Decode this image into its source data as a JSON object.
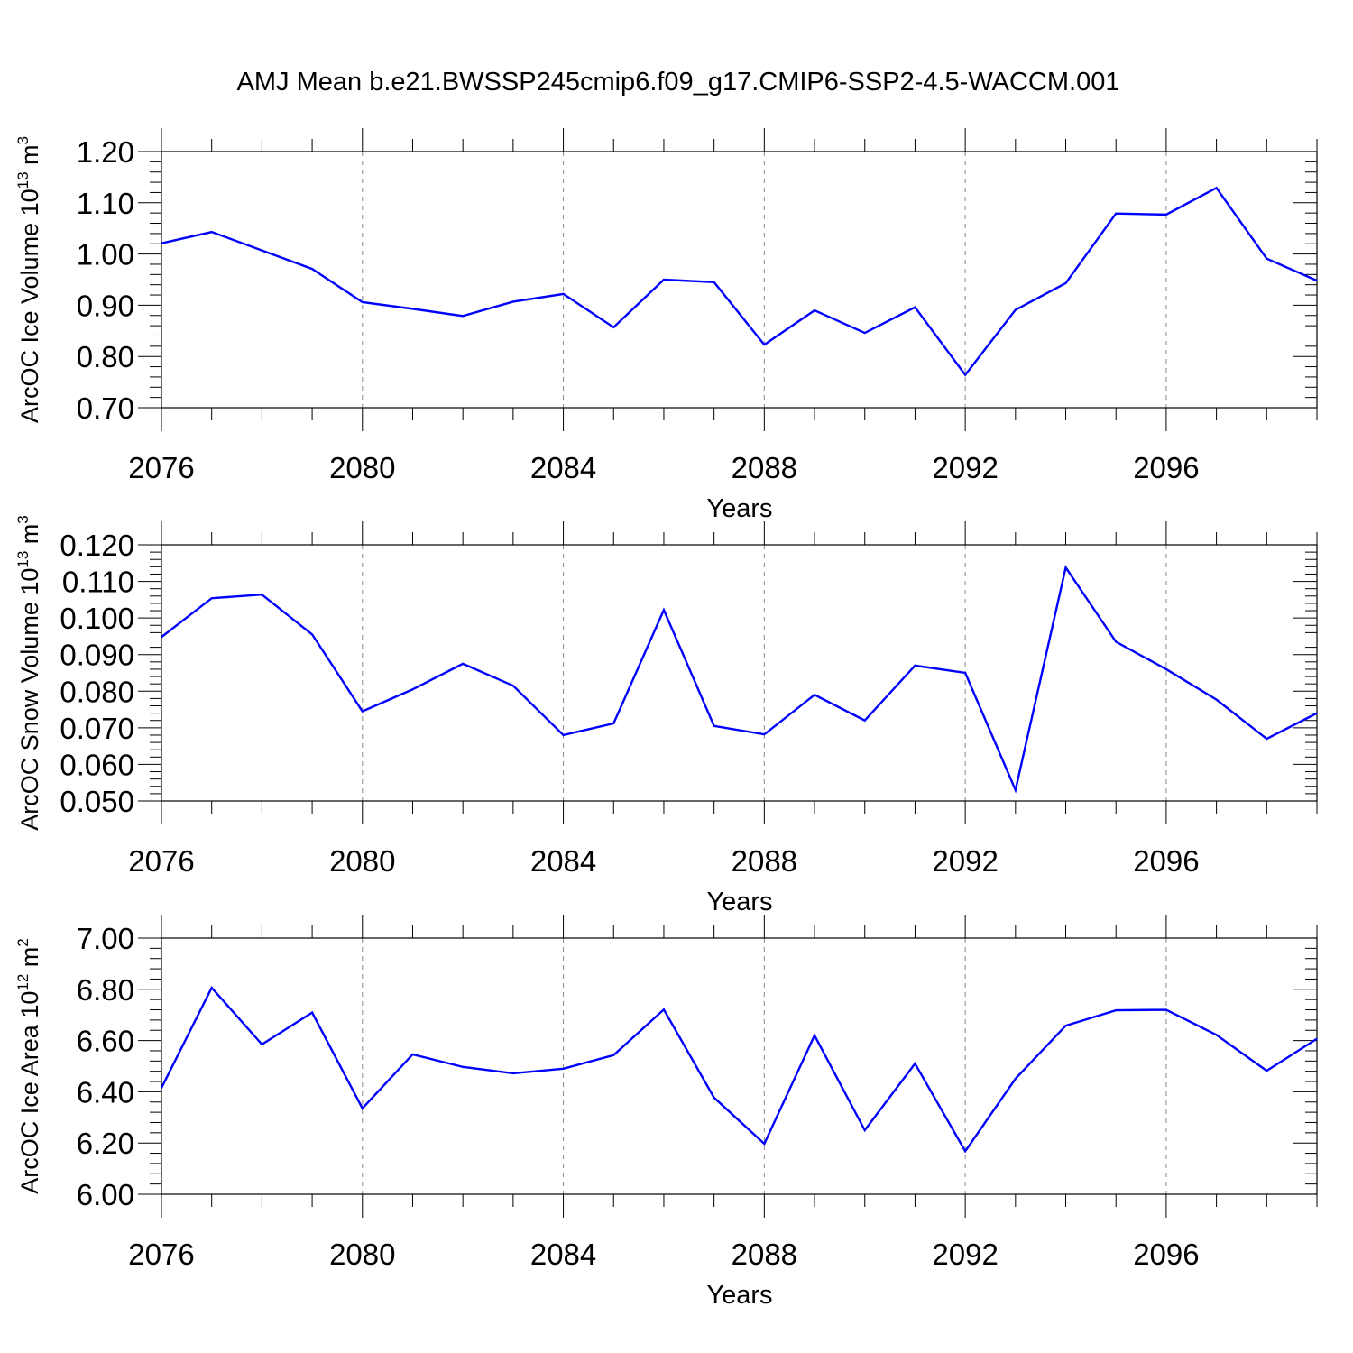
{
  "title": "AMJ Mean b.e21.BWSSP245cmip6.f09_g17.CMIP6-SSP2-4.5-WACCM.001",
  "colors": {
    "series": "#0000ff",
    "axis": "#000000",
    "grid": "#888888"
  },
  "chart_data": [
    {
      "type": "line",
      "ylabel": {
        "text": "ArcOC Ice Volume 10",
        "exponent": "13",
        "unit": " m",
        "unit_exponent": "3"
      },
      "xlabel": "Years",
      "xlim": [
        2076,
        2099
      ],
      "x_major_ticks": [
        2076,
        2080,
        2084,
        2088,
        2092,
        2096
      ],
      "x_tick_labels": [
        "2076",
        "2080",
        "2084",
        "2088",
        "2092",
        "2096"
      ],
      "ylim": [
        0.7,
        1.2
      ],
      "y_ticks": [
        0.7,
        0.8,
        0.9,
        1.0,
        1.1,
        1.2
      ],
      "y_tick_labels": [
        "0.70",
        "0.80",
        "0.90",
        "1.00",
        "1.10",
        "1.20"
      ],
      "grid": "vertical dashed",
      "x": [
        2076,
        2077,
        2078,
        2079,
        2080,
        2081,
        2082,
        2083,
        2084,
        2085,
        2086,
        2087,
        2088,
        2089,
        2090,
        2091,
        2092,
        2093,
        2094,
        2095,
        2096,
        2097,
        2098,
        2099
      ],
      "values": [
        1.021,
        1.043,
        1.007,
        0.971,
        0.906,
        0.893,
        0.879,
        0.907,
        0.922,
        0.857,
        0.95,
        0.945,
        0.823,
        0.89,
        0.846,
        0.896,
        0.764,
        0.891,
        0.943,
        1.079,
        1.077,
        1.129,
        0.991,
        0.948
      ]
    },
    {
      "type": "line",
      "ylabel": {
        "text": "ArcOC Snow Volume 10",
        "exponent": "13",
        "unit": " m",
        "unit_exponent": "3"
      },
      "xlabel": "Years",
      "xlim": [
        2076,
        2099
      ],
      "x_major_ticks": [
        2076,
        2080,
        2084,
        2088,
        2092,
        2096
      ],
      "x_tick_labels": [
        "2076",
        "2080",
        "2084",
        "2088",
        "2092",
        "2096"
      ],
      "ylim": [
        0.05,
        0.12
      ],
      "y_ticks": [
        0.05,
        0.06,
        0.07,
        0.08,
        0.09,
        0.1,
        0.11,
        0.12
      ],
      "y_tick_labels": [
        "0.050",
        "0.060",
        "0.070",
        "0.080",
        "0.090",
        "0.100",
        "0.110",
        "0.120"
      ],
      "grid": "vertical dashed",
      "x": [
        2076,
        2077,
        2078,
        2079,
        2080,
        2081,
        2082,
        2083,
        2084,
        2085,
        2086,
        2087,
        2088,
        2089,
        2090,
        2091,
        2092,
        2093,
        2094,
        2095,
        2096,
        2097,
        2098,
        2099
      ],
      "values": [
        0.0948,
        0.1054,
        0.1064,
        0.0955,
        0.0745,
        0.0805,
        0.0875,
        0.0815,
        0.068,
        0.0712,
        0.1022,
        0.0705,
        0.0682,
        0.079,
        0.072,
        0.087,
        0.085,
        0.053,
        0.1138,
        0.0935,
        0.086,
        0.0777,
        0.067,
        0.074
      ]
    },
    {
      "type": "line",
      "ylabel": {
        "text": "ArcOC Ice Area 10",
        "exponent": "12",
        "unit": " m",
        "unit_exponent": "2"
      },
      "xlabel": "Years",
      "xlim": [
        2076,
        2099
      ],
      "x_major_ticks": [
        2076,
        2080,
        2084,
        2088,
        2092,
        2096
      ],
      "x_tick_labels": [
        "2076",
        "2080",
        "2084",
        "2088",
        "2092",
        "2096"
      ],
      "ylim": [
        6.0,
        7.0
      ],
      "y_ticks": [
        6.0,
        6.2,
        6.4,
        6.6,
        6.8,
        7.0
      ],
      "y_tick_labels": [
        "6.00",
        "6.20",
        "6.40",
        "6.60",
        "6.80",
        "7.00"
      ],
      "grid": "vertical dashed",
      "x": [
        2076,
        2077,
        2078,
        2079,
        2080,
        2081,
        2082,
        2083,
        2084,
        2085,
        2086,
        2087,
        2088,
        2089,
        2090,
        2091,
        2092,
        2093,
        2094,
        2095,
        2096,
        2097,
        2098,
        2099
      ],
      "values": [
        6.415,
        6.806,
        6.585,
        6.709,
        6.335,
        6.546,
        6.497,
        6.472,
        6.49,
        6.543,
        6.721,
        6.377,
        6.197,
        6.62,
        6.25,
        6.51,
        6.168,
        6.451,
        6.658,
        6.718,
        6.72,
        6.622,
        6.482,
        6.607
      ]
    }
  ]
}
